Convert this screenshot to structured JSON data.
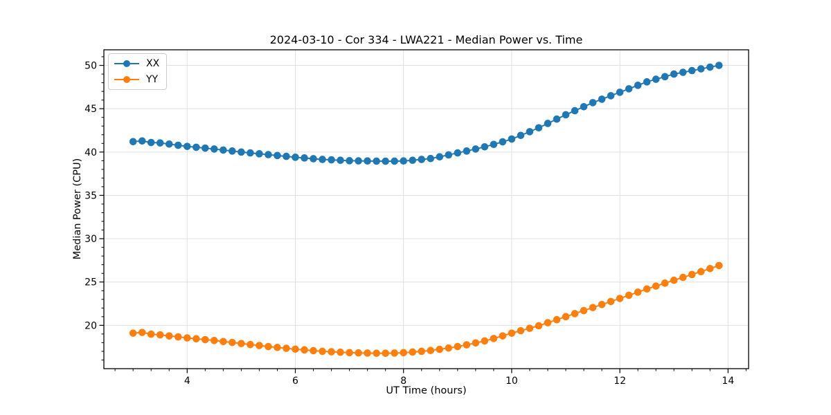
{
  "figure": {
    "background": "#ffffff"
  },
  "chart_data": {
    "type": "line",
    "title": "2024-03-10 - Cor 334 - LWA221 - Median Power vs. Time",
    "xlabel": "UT Time (hours)",
    "ylabel": "Median Power (CPU)",
    "xlim": [
      2.46,
      14.38
    ],
    "ylim": [
      15.0,
      51.8
    ],
    "x_ticks": [
      4,
      6,
      8,
      10,
      12,
      14
    ],
    "y_ticks": [
      20,
      25,
      30,
      35,
      40,
      45,
      50
    ],
    "x_minor_step": 0.3333333,
    "y_minor_step": 1,
    "x_major_step": 2,
    "y_major_step": 5,
    "grid": "major",
    "grid_color": "#e0e0e0",
    "axis_color": "#000000",
    "tick_label_color": "#000000",
    "legend_position": "upper-left",
    "marker": "circle",
    "x": [
      3.0,
      3.167,
      3.333,
      3.5,
      3.667,
      3.833,
      4.0,
      4.167,
      4.333,
      4.5,
      4.667,
      4.833,
      5.0,
      5.167,
      5.333,
      5.5,
      5.667,
      5.833,
      6.0,
      6.167,
      6.333,
      6.5,
      6.667,
      6.833,
      7.0,
      7.167,
      7.333,
      7.5,
      7.667,
      7.833,
      8.0,
      8.167,
      8.333,
      8.5,
      8.667,
      8.833,
      9.0,
      9.167,
      9.333,
      9.5,
      9.667,
      9.833,
      10.0,
      10.167,
      10.333,
      10.5,
      10.667,
      10.833,
      11.0,
      11.167,
      11.333,
      11.5,
      11.667,
      11.833,
      12.0,
      12.167,
      12.333,
      12.5,
      12.667,
      12.833,
      13.0,
      13.167,
      13.333,
      13.5,
      13.667,
      13.833
    ],
    "series": [
      {
        "name": "XX",
        "color": "#1f77b4",
        "values": [
          41.2,
          41.28,
          41.1,
          41.05,
          40.92,
          40.78,
          40.65,
          40.55,
          40.45,
          40.35,
          40.23,
          40.12,
          40.0,
          39.9,
          39.8,
          39.7,
          39.6,
          39.5,
          39.4,
          39.32,
          39.23,
          39.15,
          39.1,
          39.05,
          39.0,
          38.98,
          38.97,
          38.95,
          38.94,
          38.95,
          38.97,
          39.05,
          39.15,
          39.25,
          39.45,
          39.67,
          39.9,
          40.12,
          40.35,
          40.6,
          40.88,
          41.18,
          41.5,
          41.92,
          42.35,
          42.8,
          43.3,
          43.8,
          44.3,
          44.77,
          45.23,
          45.7,
          46.1,
          46.5,
          46.9,
          47.3,
          47.7,
          48.1,
          48.4,
          48.7,
          49.0,
          49.2,
          49.4,
          49.6,
          49.8,
          50.0
        ]
      },
      {
        "name": "YY",
        "color": "#ff7f0e",
        "values": [
          19.1,
          19.18,
          18.98,
          18.9,
          18.78,
          18.67,
          18.55,
          18.45,
          18.35,
          18.25,
          18.13,
          18.02,
          17.9,
          17.78,
          17.67,
          17.55,
          17.45,
          17.35,
          17.25,
          17.17,
          17.08,
          17.0,
          16.95,
          16.9,
          16.85,
          16.82,
          16.8,
          16.78,
          16.78,
          16.8,
          16.85,
          16.92,
          17.0,
          17.1,
          17.23,
          17.38,
          17.55,
          17.75,
          17.97,
          18.2,
          18.48,
          18.78,
          19.1,
          19.38,
          19.66,
          19.95,
          20.3,
          20.65,
          21.0,
          21.35,
          21.7,
          22.05,
          22.4,
          22.75,
          23.1,
          23.47,
          23.83,
          24.2,
          24.53,
          24.87,
          25.2,
          25.53,
          25.87,
          26.2,
          26.55,
          26.9
        ]
      }
    ]
  }
}
